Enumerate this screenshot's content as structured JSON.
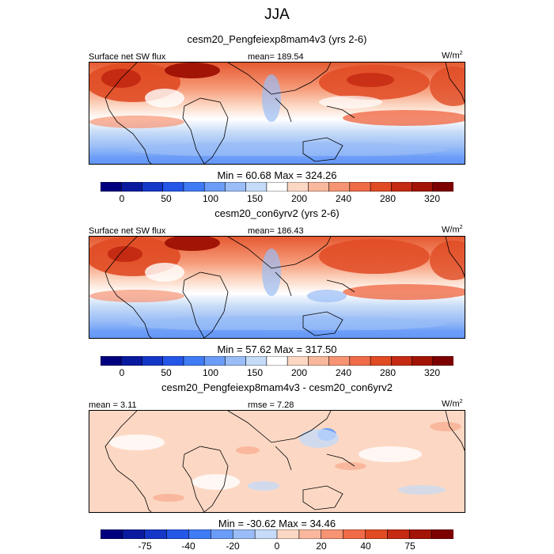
{
  "figure_title": "JJA",
  "colors": {
    "abs_scale": [
      "#00007f",
      "#0a1a9f",
      "#1437c8",
      "#2456e8",
      "#3f7bf5",
      "#6b9cf7",
      "#9abdf7",
      "#c6dbf7",
      "#ffffff",
      "#fcd8c4",
      "#f9b89d",
      "#f79473",
      "#f06b47",
      "#e04b24",
      "#c52a12",
      "#a21405",
      "#7d0000"
    ],
    "diff_scale": [
      "#00007f",
      "#0a1a9f",
      "#1437c8",
      "#2456e8",
      "#3f7bf5",
      "#6b9cf7",
      "#9abdf7",
      "#c6dbf7",
      "#fcd8c4",
      "#f9b89d",
      "#f79473",
      "#f06b47",
      "#e04b24",
      "#c52a12",
      "#a21405",
      "#7d0000"
    ],
    "land_outline": "#000000"
  },
  "panels": [
    {
      "title": "cesm20_Pengfeiexp8mam4v3 (yrs 2-6)",
      "left_label": "Surface net SW flux",
      "center_label": "mean= 189.54",
      "units": "W/m",
      "units_sup": "2",
      "minmax": "Min =  60.68 Max = 324.26",
      "colorbar_ticks": [
        "0",
        "50",
        "100",
        "150",
        "200",
        "240",
        "280",
        "320"
      ]
    },
    {
      "title": "cesm20_con6yrv2 (yrs 2-6)",
      "left_label": "Surface net SW flux",
      "center_label": "mean= 186.43",
      "units": "W/m",
      "units_sup": "2",
      "minmax": "Min =  57.62 Max = 317.50",
      "colorbar_ticks": [
        "0",
        "50",
        "100",
        "150",
        "200",
        "240",
        "280",
        "320"
      ]
    },
    {
      "title": "cesm20_Pengfeiexp8mam4v3 - cesm20_con6yrv2",
      "left_label": "mean =   3.11",
      "center_label": "rmse =   7.28",
      "units": "W/m",
      "units_sup": "2",
      "minmax": "Min = -30.62 Max =  34.46",
      "colorbar_ticks": [
        "-75",
        "-40",
        "-20",
        "0",
        "20",
        "40",
        "75"
      ]
    }
  ]
}
